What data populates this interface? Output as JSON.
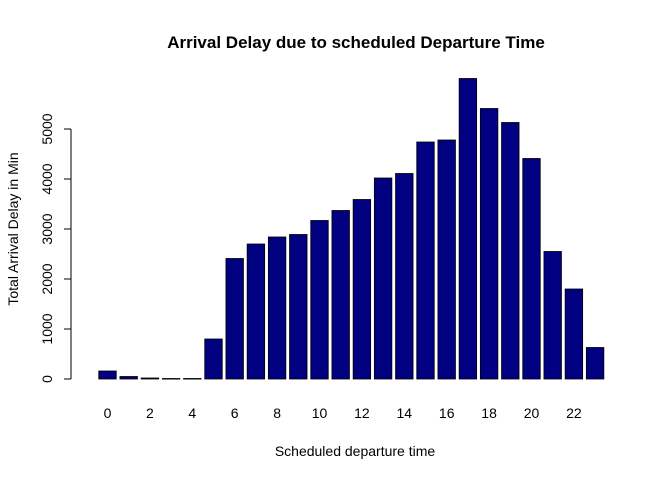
{
  "chart_data": {
    "type": "bar",
    "title": "Arrival Delay due to scheduled Departure Time",
    "xlabel": "Scheduled departure time",
    "ylabel": "Total Arrival Delay in Min",
    "categories": [
      "0",
      "1",
      "2",
      "3",
      "4",
      "5",
      "6",
      "7",
      "8",
      "9",
      "10",
      "11",
      "12",
      "13",
      "14",
      "15",
      "16",
      "17",
      "18",
      "19",
      "20",
      "21",
      "22",
      "23"
    ],
    "x_tick_labels": [
      "0",
      "2",
      "4",
      "6",
      "8",
      "10",
      "12",
      "14",
      "16",
      "18",
      "20",
      "22"
    ],
    "values": [
      160,
      50,
      20,
      10,
      10,
      800,
      2410,
      2700,
      2840,
      2890,
      3170,
      3370,
      3590,
      4020,
      4110,
      4740,
      4780,
      6010,
      5410,
      5130,
      4410,
      2550,
      1800,
      630
    ],
    "yticks": [
      0,
      1000,
      2000,
      3000,
      4000,
      5000
    ],
    "ylim": [
      0,
      6100
    ],
    "bar_color": "#000080",
    "grid": false,
    "legend": "none"
  }
}
